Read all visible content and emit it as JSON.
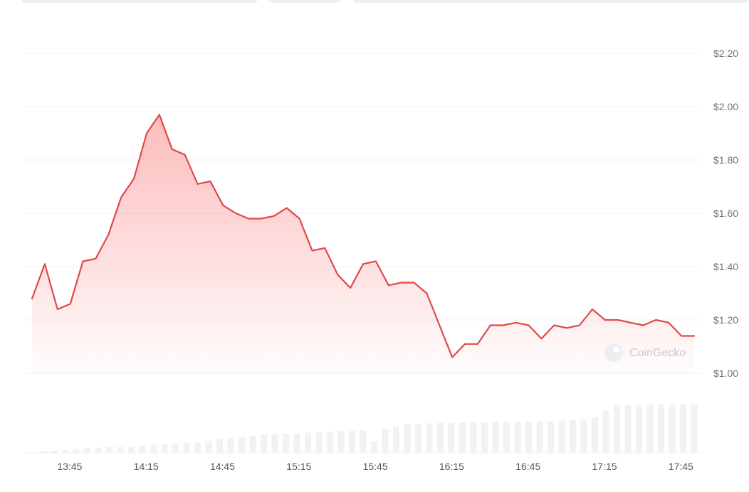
{
  "watermark": "CoinGecko",
  "colors": {
    "line": "#e04848",
    "fill": "#fca5a5",
    "grid": "#eef0f3",
    "volume": "#f1f2f4"
  },
  "chart_data": {
    "type": "area",
    "y_currency": "$",
    "ylim": [
      1.0,
      2.2
    ],
    "y_ticks": [
      "$2.20",
      "$2.00",
      "$1.80",
      "$1.60",
      "$1.40",
      "$1.20",
      "$1.00"
    ],
    "y_tick_values": [
      2.2,
      2.0,
      1.8,
      1.6,
      1.4,
      1.2,
      1.0
    ],
    "x_ticks": [
      "13:45",
      "14:15",
      "14:45",
      "15:15",
      "15:45",
      "16:15",
      "16:45",
      "17:15",
      "17:45"
    ],
    "x_tick_minutes": [
      825,
      855,
      885,
      915,
      945,
      975,
      1005,
      1035,
      1065
    ],
    "xlim_minutes": [
      820,
      1080
    ],
    "grid": true,
    "series": [
      {
        "t": [
          820,
          825,
          830,
          835,
          840,
          845,
          850,
          855,
          860,
          865,
          870,
          875,
          880,
          885,
          890,
          895,
          900,
          905,
          910,
          915,
          920,
          925,
          930,
          935,
          940,
          945,
          950,
          955,
          960,
          965,
          970,
          975,
          980,
          985,
          990,
          995,
          1000,
          1005,
          1010,
          1015,
          1020,
          1025,
          1030,
          1035,
          1040,
          1045,
          1050,
          1055,
          1060,
          1065,
          1070,
          1075,
          1080
        ],
        "values": [
          1.28,
          1.41,
          1.24,
          1.26,
          1.42,
          1.43,
          1.52,
          1.66,
          1.73,
          1.9,
          1.97,
          1.84,
          1.82,
          1.71,
          1.72,
          1.63,
          1.6,
          1.58,
          1.58,
          1.59,
          1.62,
          1.58,
          1.46,
          1.47,
          1.37,
          1.32,
          1.41,
          1.42,
          1.33,
          1.34,
          1.34,
          1.3,
          1.18,
          1.06,
          1.11,
          1.11,
          1.18,
          1.18,
          1.19,
          1.18,
          1.13,
          1.18,
          1.17,
          1.18,
          1.24,
          1.2,
          1.2,
          1.19,
          1.18,
          1.2,
          1.19,
          1.14,
          1.14
        ]
      }
    ],
    "volume": {
      "relative": true,
      "values": [
        0.02,
        0.03,
        0.04,
        0.06,
        0.08,
        0.1,
        0.11,
        0.12,
        0.12,
        0.13,
        0.15,
        0.17,
        0.18,
        0.19,
        0.2,
        0.22,
        0.25,
        0.28,
        0.3,
        0.33,
        0.36,
        0.38,
        0.39,
        0.4,
        0.41,
        0.42,
        0.42,
        0.44,
        0.45,
        0.46,
        0.47,
        0.25,
        0.5,
        0.55,
        0.6,
        0.6,
        0.61,
        0.62,
        0.62,
        0.63,
        0.63,
        0.63,
        0.64,
        0.64,
        0.64,
        0.64,
        0.66,
        0.66,
        0.67,
        0.68,
        0.69,
        0.73,
        0.88,
        0.99,
        0.99,
        0.99,
        1.0,
        1.0,
        1.0,
        1.0,
        1.0
      ]
    }
  }
}
